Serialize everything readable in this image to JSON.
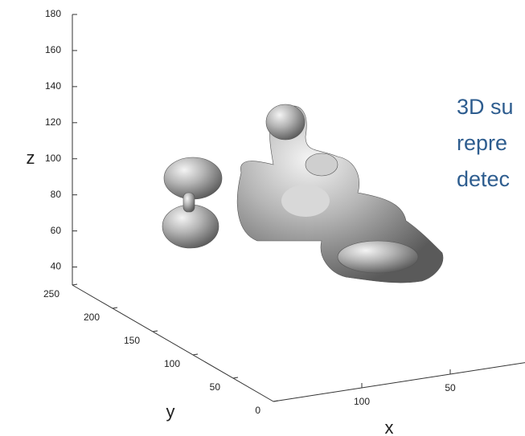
{
  "chart_data": {
    "type": "surface3d",
    "annotation": [
      "3D su",
      "repre",
      "detec"
    ],
    "xlabel": "x",
    "ylabel": "y",
    "zlabel": "z",
    "xlim": [
      0,
      150
    ],
    "xticks": [
      50,
      100
    ],
    "ylim": [
      0,
      250
    ],
    "yticks": [
      0,
      50,
      100,
      150,
      200,
      250
    ],
    "zlim": [
      30,
      180
    ],
    "zticks": [
      40,
      60,
      80,
      100,
      120,
      140,
      160,
      180
    ]
  }
}
